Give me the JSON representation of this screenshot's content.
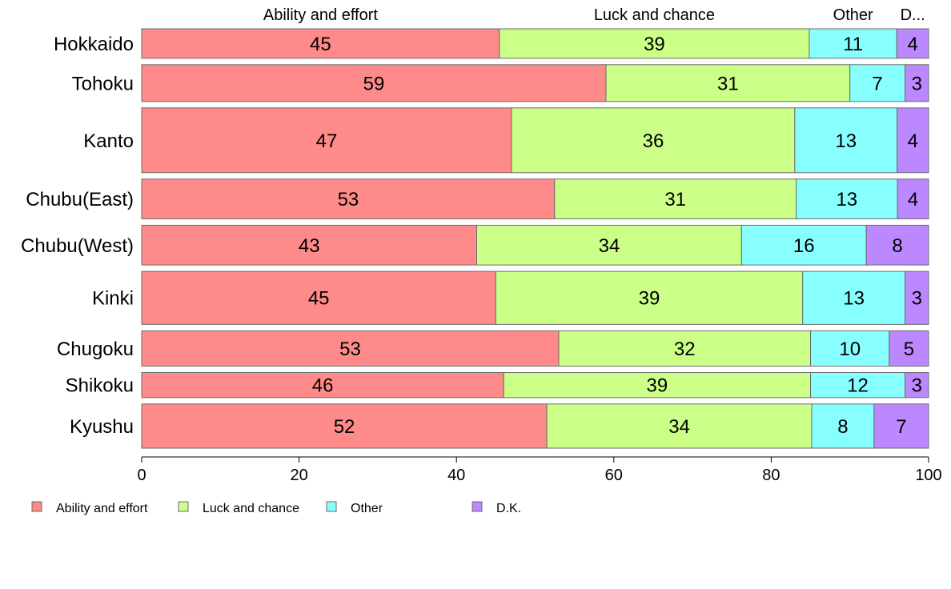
{
  "chart_data": {
    "type": "bar",
    "orientation": "horizontal-stacked-100",
    "categories": [
      "Hokkaido",
      "Tohoku",
      "Kanto",
      "Chubu(East)",
      "Chubu(West)",
      "Kinki",
      "Chugoku",
      "Shikoku",
      "Kyushu"
    ],
    "series": [
      {
        "name": "Ability and effort",
        "short": "Ability and effort",
        "color": "#ff8a8a",
        "values": [
          45,
          59,
          47,
          53,
          43,
          45,
          53,
          46,
          52
        ],
        "display": [
          "45",
          "59",
          "47",
          "53",
          "43",
          "45",
          "53",
          "46",
          "52"
        ]
      },
      {
        "name": "Luck and chance",
        "short": "Luck and chance",
        "color": "#ccff88",
        "values": [
          39,
          31,
          36,
          31,
          34,
          39,
          32,
          39,
          34
        ],
        "display": [
          "39",
          "31",
          "36",
          "31",
          "34",
          "39",
          "32",
          "39",
          "34"
        ]
      },
      {
        "name": "Other",
        "short": "Other",
        "color": "#88ffff",
        "values": [
          11,
          7,
          13,
          13,
          16,
          13,
          10,
          12,
          8
        ],
        "display": [
          "11",
          "7",
          "13",
          "13",
          "16",
          "13",
          "10",
          "12",
          "8"
        ]
      },
      {
        "name": "D.K.",
        "short": "D...",
        "color": "#bb88ff",
        "values": [
          4,
          3,
          4,
          4,
          8,
          3,
          5,
          3,
          7
        ],
        "display": [
          "4",
          "3",
          "4",
          "4",
          "8",
          "3",
          "5",
          "3",
          "7"
        ]
      }
    ],
    "row_weights": [
      1,
      1.25,
      2.2,
      1.35,
      1.35,
      1.8,
      1.2,
      0.85,
      1.5
    ],
    "xlim": [
      0,
      100
    ],
    "xticks": [
      "0",
      "20",
      "40",
      "60",
      "80",
      "100"
    ],
    "grid": false,
    "legend_position": "bottom-left"
  }
}
